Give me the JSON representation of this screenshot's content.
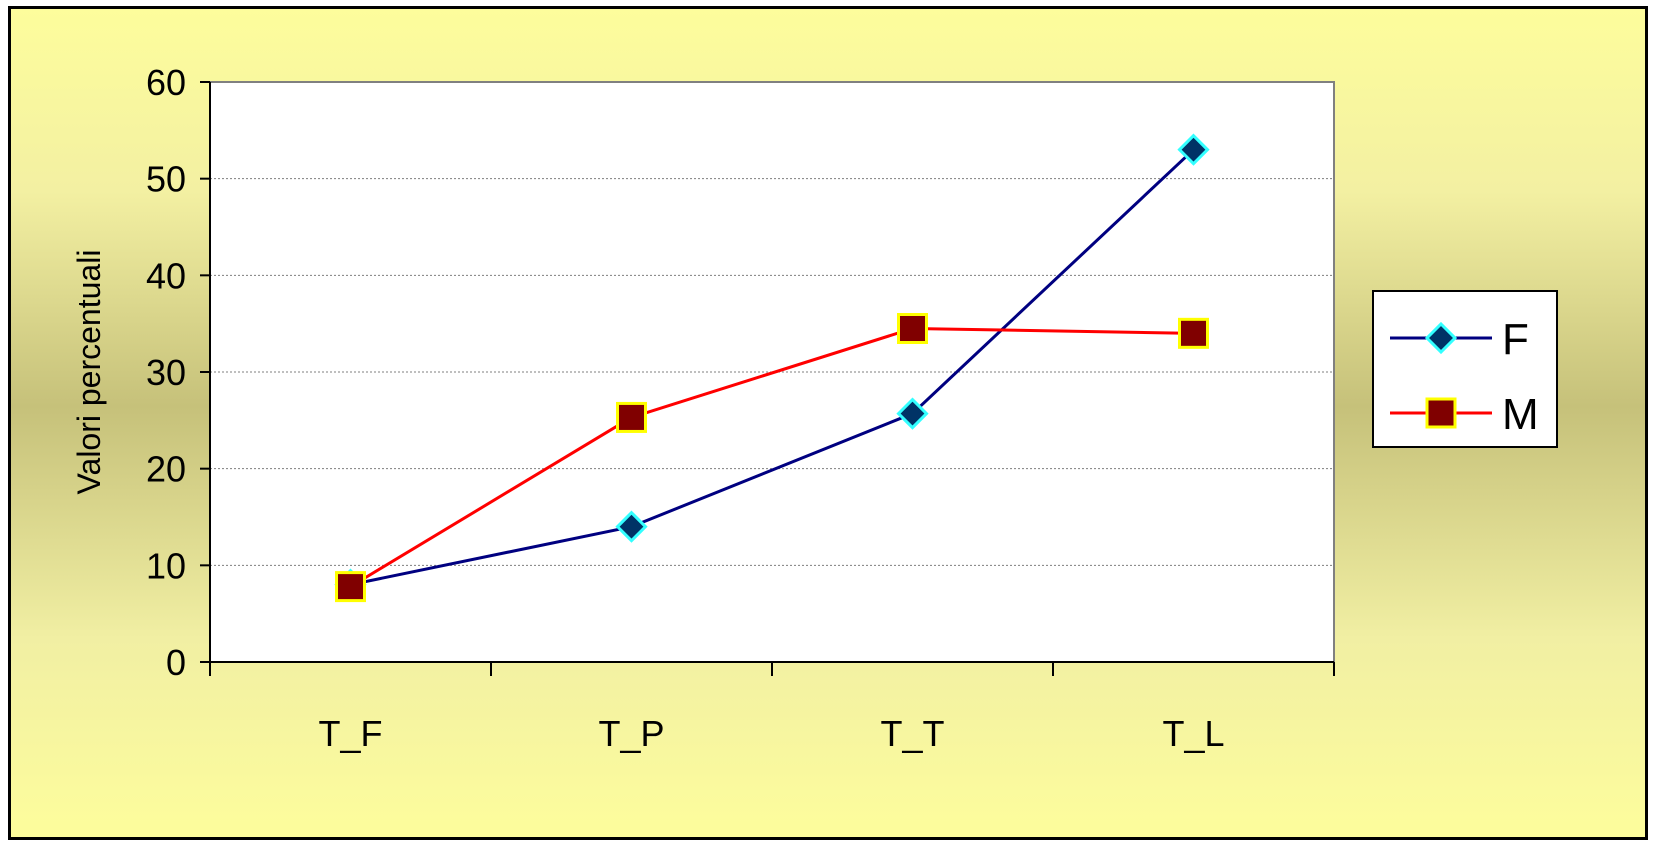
{
  "chart_data": {
    "type": "line",
    "title": "",
    "xlabel": "",
    "ylabel": "Valori percentuali",
    "categories": [
      "T_F",
      "T_P",
      "T_T",
      "T_L"
    ],
    "ylim": [
      0,
      60
    ],
    "yticks": [
      0,
      10,
      20,
      30,
      40,
      50,
      60
    ],
    "grid": true,
    "legend_position": "right",
    "series": [
      {
        "name": "F",
        "values": [
          8,
          14,
          25.7,
          53
        ],
        "line_color": "#000080",
        "marker": "diamond",
        "marker_fill": "#003366",
        "marker_edge": "#33ffff"
      },
      {
        "name": "M",
        "values": [
          7.8,
          25.3,
          34.5,
          34
        ],
        "line_color": "#ff0000",
        "marker": "square",
        "marker_fill": "#800000",
        "marker_edge": "#ffff00"
      }
    ]
  }
}
